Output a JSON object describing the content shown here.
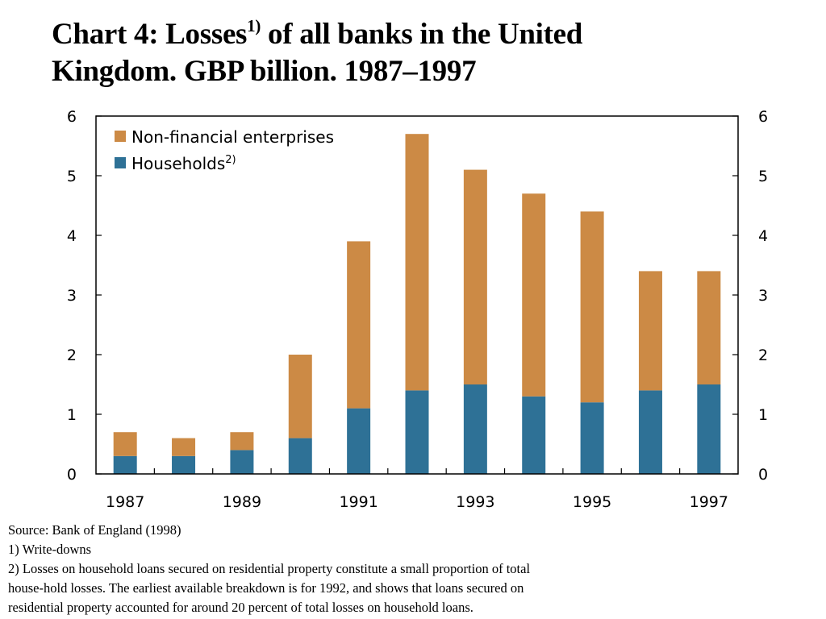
{
  "title": {
    "main": "Chart 4: Losses",
    "sup": "1)",
    "rest_line1": " of all banks in the United",
    "line2": "Kingdom. GBP billion. 1987–1997"
  },
  "chart_data": {
    "type": "bar",
    "stacked": true,
    "categories": [
      "1987",
      "1988",
      "1989",
      "1990",
      "1991",
      "1992",
      "1993",
      "1994",
      "1995",
      "1996",
      "1997"
    ],
    "x_tick_labels": [
      "1987",
      "1989",
      "1991",
      "1993",
      "1995",
      "1997"
    ],
    "series": [
      {
        "name": "Households",
        "legend_label": "Households",
        "legend_sup": "2)",
        "color": "#2e7196",
        "values": [
          0.3,
          0.3,
          0.4,
          0.6,
          1.1,
          1.4,
          1.5,
          1.3,
          1.2,
          1.4,
          1.5
        ]
      },
      {
        "name": "Non-financial enterprises",
        "legend_label": "Non-financial enterprises",
        "legend_sup": "",
        "color": "#cc8a45",
        "values": [
          0.4,
          0.3,
          0.3,
          1.4,
          2.8,
          4.3,
          3.6,
          3.4,
          3.2,
          2.0,
          1.9
        ]
      }
    ],
    "legend_order": [
      "Non-financial enterprises",
      "Households"
    ],
    "ylim": [
      0,
      6
    ],
    "yticks": [
      0,
      1,
      2,
      3,
      4,
      5,
      6
    ],
    "y_axis_right": true,
    "grid": false,
    "legend_position": "top-left",
    "xlabel": "",
    "ylabel": ""
  },
  "notes": {
    "source": "Source: Bank of England (1998)",
    "note1": "1) Write-downs",
    "note2_line1": "2) Losses on household loans secured on residential property constitute a small proportion of total",
    "note2_line2": "house-hold losses. The earliest available breakdown is for 1992, and shows that loans secured on",
    "note2_line3": "residential property accounted for around 20 percent of total losses on household loans."
  }
}
